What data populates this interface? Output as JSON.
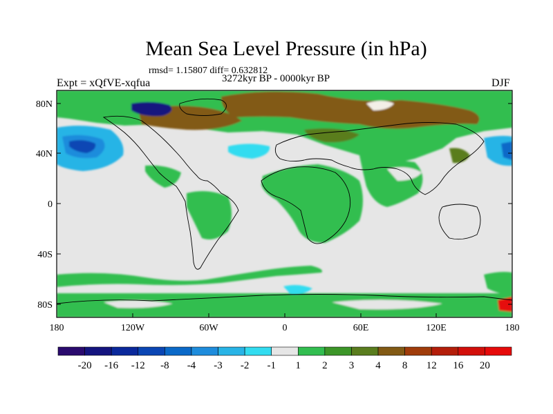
{
  "title": "Mean Sea Level Pressure (in hPa)",
  "stats": "rmsd= 1.15807 diff= 0.632812",
  "period": "3272kyr BP - 0000kyr BP",
  "experiment": "Expt = xQfVE-xqfua",
  "season": "DJF",
  "lat_ticks": [
    "80N",
    "40N",
    "0",
    "40S",
    "80S"
  ],
  "lon_ticks": [
    "180",
    "120W",
    "60W",
    "0",
    "60E",
    "120E",
    "180"
  ],
  "colorbar": {
    "labels": [
      "-20",
      "-16",
      "-12",
      "-8",
      "-4",
      "-3",
      "-2",
      "-1",
      "1",
      "2",
      "3",
      "4",
      "8",
      "12",
      "16",
      "20"
    ],
    "colors": [
      "#2a0a6e",
      "#14147f",
      "#0a289b",
      "#0a46b4",
      "#0a69c8",
      "#1e8cdc",
      "#28b4e6",
      "#32dcf0",
      "#e6e6e6",
      "#32be50",
      "#3c9628",
      "#5a7d1e",
      "#825a14",
      "#a03c0a",
      "#b41e0a",
      "#d20f0a",
      "#e60a0a"
    ]
  },
  "colors": {
    "neutral": "#e6e6e6",
    "positive_weak": "#32be50",
    "positive_mid": "#5a7d1e",
    "positive_strong": "#825a14",
    "negative_weak": "#32dcf0",
    "negative_mid": "#28b4e6",
    "negative_strong": "#0a46b4"
  }
}
